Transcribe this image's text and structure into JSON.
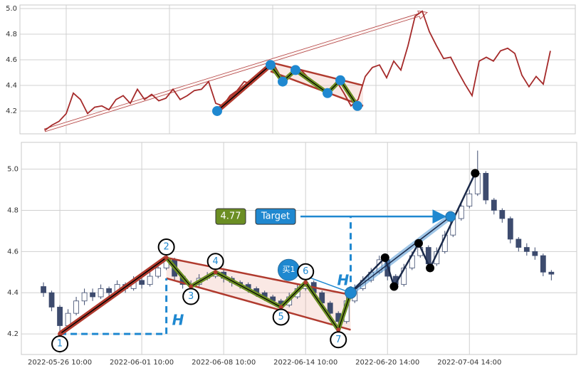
{
  "chart_data": [
    {
      "type": "line",
      "color": "#a52a2a",
      "xlim": [
        -3.5,
        74.5
      ],
      "ylim": [
        4.022,
        5.028
      ],
      "yticks": [
        4.2,
        4.4,
        4.6,
        4.8,
        {
          "value": 5,
          "label": "5.0"
        }
      ],
      "xgrid": [
        3,
        17.5,
        32,
        46.5,
        61
      ],
      "values": [
        4.05,
        4.09,
        4.12,
        4.18,
        4.34,
        4.29,
        4.18,
        4.23,
        4.24,
        4.21,
        4.29,
        4.32,
        4.26,
        4.37,
        4.29,
        4.33,
        4.28,
        4.3,
        4.37,
        4.29,
        4.32,
        4.36,
        4.37,
        4.43,
        4.26,
        4.24,
        4.32,
        4.36,
        4.43,
        4.41,
        4.48,
        4.54,
        4.58,
        4.48,
        4.44,
        4.51,
        4.52,
        4.46,
        4.4,
        4.36,
        4.37,
        4.43,
        4.34,
        4.24,
        4.29,
        4.47,
        4.54,
        4.56,
        4.46,
        4.59,
        4.52,
        4.71,
        4.94,
        4.98,
        4.82,
        4.71,
        4.61,
        4.62,
        4.51,
        4.41,
        4.32,
        4.59,
        4.62,
        4.59,
        4.67,
        4.69,
        4.65,
        4.48,
        4.39,
        4.47,
        4.41,
        4.67
      ],
      "pattern": {
        "points": [
          [
            24.2,
            4.2
          ],
          [
            31.7,
            4.56
          ],
          [
            33.4,
            4.43
          ],
          [
            35.2,
            4.52
          ],
          [
            39.7,
            4.34
          ],
          [
            41.5,
            4.44
          ],
          [
            43.9,
            4.24
          ]
        ],
        "upper": [
          [
            31.7,
            4.58
          ],
          [
            44.7,
            4.4
          ]
        ],
        "lower": [
          [
            31.7,
            4.51
          ],
          [
            44.7,
            4.24
          ]
        ],
        "trend_arrow": [
          [
            0,
            4.05
          ],
          [
            53.7,
            4.97
          ]
        ]
      }
    },
    {
      "type": "candlestick",
      "up_color": "#ffffff",
      "down_color": "#3d4b6e",
      "xlim": [
        -2.7,
        65.1
      ],
      "ylim": [
        4.1,
        5.13
      ],
      "yticks": [
        4.2,
        4.4,
        4.6,
        4.8,
        {
          "value": 5,
          "label": "5.0"
        }
      ],
      "xticks": [
        {
          "value": 2,
          "label": "2022-05-26 10:00"
        },
        {
          "value": 12,
          "label": "2022-06-01 10:00"
        },
        {
          "value": 22,
          "label": "2022-06-08 10:00"
        },
        {
          "value": 32,
          "label": "2022-06-14 10:00"
        },
        {
          "value": 42,
          "label": "2022-06-20 14:00"
        },
        {
          "value": 52,
          "label": "2022-07-04 14:00"
        }
      ],
      "open": [
        4.43,
        4.4,
        4.33,
        4.24,
        4.3,
        4.36,
        4.4,
        4.38,
        4.42,
        4.4,
        4.44,
        4.42,
        4.46,
        4.44,
        4.48,
        4.52,
        4.56,
        4.48,
        4.44,
        4.44,
        4.47,
        4.48,
        4.5,
        4.47,
        4.45,
        4.44,
        4.42,
        4.4,
        4.38,
        4.36,
        4.34,
        4.38,
        4.42,
        4.45,
        4.4,
        4.35,
        4.3,
        4.26,
        4.36,
        4.42,
        4.46,
        4.5,
        4.56,
        4.48,
        4.44,
        4.52,
        4.58,
        4.62,
        4.54,
        4.6,
        4.68,
        4.76,
        4.82,
        4.88,
        4.98,
        4.85,
        4.8,
        4.76,
        4.66,
        4.62,
        4.6,
        4.58,
        4.5
      ],
      "high": [
        4.45,
        4.41,
        4.34,
        4.32,
        4.38,
        4.42,
        4.42,
        4.44,
        4.43,
        4.46,
        4.45,
        4.48,
        4.47,
        4.5,
        4.54,
        4.58,
        4.57,
        4.49,
        4.46,
        4.49,
        4.5,
        4.52,
        4.51,
        4.48,
        4.46,
        4.45,
        4.43,
        4.41,
        4.39,
        4.37,
        4.4,
        4.44,
        4.47,
        4.46,
        4.41,
        4.36,
        4.31,
        4.38,
        4.44,
        4.48,
        4.52,
        4.58,
        4.57,
        4.49,
        4.54,
        4.6,
        4.65,
        4.63,
        4.62,
        4.7,
        4.78,
        4.84,
        4.9,
        5.09,
        4.99,
        4.86,
        4.81,
        4.77,
        4.67,
        4.64,
        4.62,
        4.59,
        4.51
      ],
      "low": [
        4.38,
        4.31,
        4.2,
        4.22,
        4.29,
        4.34,
        4.36,
        4.37,
        4.38,
        4.39,
        4.4,
        4.41,
        4.42,
        4.43,
        4.47,
        4.51,
        4.46,
        4.42,
        4.42,
        4.43,
        4.46,
        4.47,
        4.45,
        4.43,
        4.42,
        4.4,
        4.38,
        4.36,
        4.34,
        4.32,
        4.33,
        4.37,
        4.41,
        4.38,
        4.33,
        4.28,
        4.22,
        4.25,
        4.35,
        4.41,
        4.45,
        4.49,
        4.46,
        4.42,
        4.43,
        4.51,
        4.57,
        4.52,
        4.53,
        4.59,
        4.67,
        4.75,
        4.81,
        4.87,
        4.83,
        4.78,
        4.74,
        4.64,
        4.6,
        4.58,
        4.56,
        4.48,
        4.46
      ],
      "close": [
        4.4,
        4.33,
        4.24,
        4.3,
        4.36,
        4.4,
        4.38,
        4.42,
        4.4,
        4.44,
        4.42,
        4.46,
        4.44,
        4.48,
        4.52,
        4.56,
        4.48,
        4.44,
        4.44,
        4.47,
        4.48,
        4.5,
        4.47,
        4.45,
        4.44,
        4.42,
        4.4,
        4.38,
        4.36,
        4.34,
        4.38,
        4.42,
        4.45,
        4.4,
        4.35,
        4.3,
        4.26,
        4.36,
        4.42,
        4.46,
        4.5,
        4.56,
        4.48,
        4.44,
        4.52,
        4.58,
        4.62,
        4.54,
        4.6,
        4.68,
        4.76,
        4.82,
        4.88,
        4.98,
        4.85,
        4.8,
        4.76,
        4.66,
        4.62,
        4.6,
        4.58,
        4.5,
        4.49
      ],
      "pattern": {
        "points": [
          {
            "label": "1",
            "x": 2,
            "y": 4.2
          },
          {
            "label": "2",
            "x": 15,
            "y": 4.57
          },
          {
            "label": "3",
            "x": 18,
            "y": 4.43
          },
          {
            "label": "4",
            "x": 21,
            "y": 4.5
          },
          {
            "label": "5",
            "x": 29,
            "y": 4.33
          },
          {
            "label": "6",
            "x": 32,
            "y": 4.45
          },
          {
            "label": "7",
            "x": 36,
            "y": 4.22
          }
        ],
        "upper": [
          [
            15,
            4.57
          ],
          [
            37.5,
            4.39
          ]
        ],
        "lower": [
          [
            15,
            4.47
          ],
          [
            37.5,
            4.22
          ]
        ],
        "breakout": {
          "label": "买1",
          "x": 37.5,
          "y": 4.4
        },
        "h_label": "H",
        "target": 4.77,
        "target_text": "Target",
        "target_x": 49.7,
        "after": [
          [
            41.7,
            4.57
          ],
          [
            42.8,
            4.43
          ],
          [
            45.8,
            4.64
          ],
          [
            47.2,
            4.52
          ],
          [
            52.7,
            4.98
          ]
        ]
      }
    }
  ]
}
